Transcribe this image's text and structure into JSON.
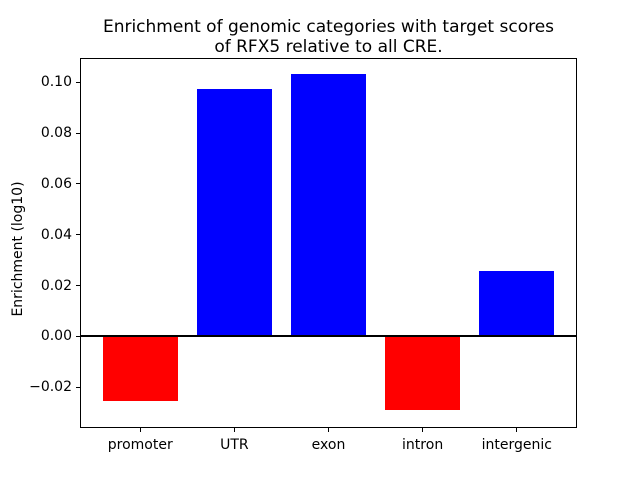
{
  "chart_data": {
    "type": "bar",
    "title": "Enrichment of genomic categories with target scores\nof RFX5 relative to all CRE.",
    "xlabel": "",
    "ylabel": "Enrichment (log10)",
    "categories": [
      "promoter",
      "UTR",
      "exon",
      "intron",
      "intergenic"
    ],
    "values": [
      -0.0255,
      0.0974,
      0.1032,
      -0.0288,
      0.0259
    ],
    "bar_colors": [
      "#ff0000",
      "#0000ff",
      "#0000ff",
      "#ff0000",
      "#0000ff"
    ],
    "positive_color": "#0000ff",
    "negative_color": "#ff0000",
    "bar_width": 0.8,
    "xlim": [
      -0.64,
      4.64
    ],
    "ylim": [
      -0.036,
      0.1095
    ],
    "yticks": [
      {
        "value": 0.1,
        "label": "0.10"
      },
      {
        "value": 0.08,
        "label": "0.08"
      },
      {
        "value": 0.06,
        "label": "0.06"
      },
      {
        "value": 0.04,
        "label": "0.04"
      },
      {
        "value": 0.02,
        "label": "0.02"
      },
      {
        "value": 0.0,
        "label": "0.00"
      },
      {
        "value": -0.02,
        "label": "−0.02"
      }
    ],
    "grid": false,
    "legend": null,
    "zero_line": true,
    "axis_color": "#000000",
    "background_color": "#ffffff"
  }
}
